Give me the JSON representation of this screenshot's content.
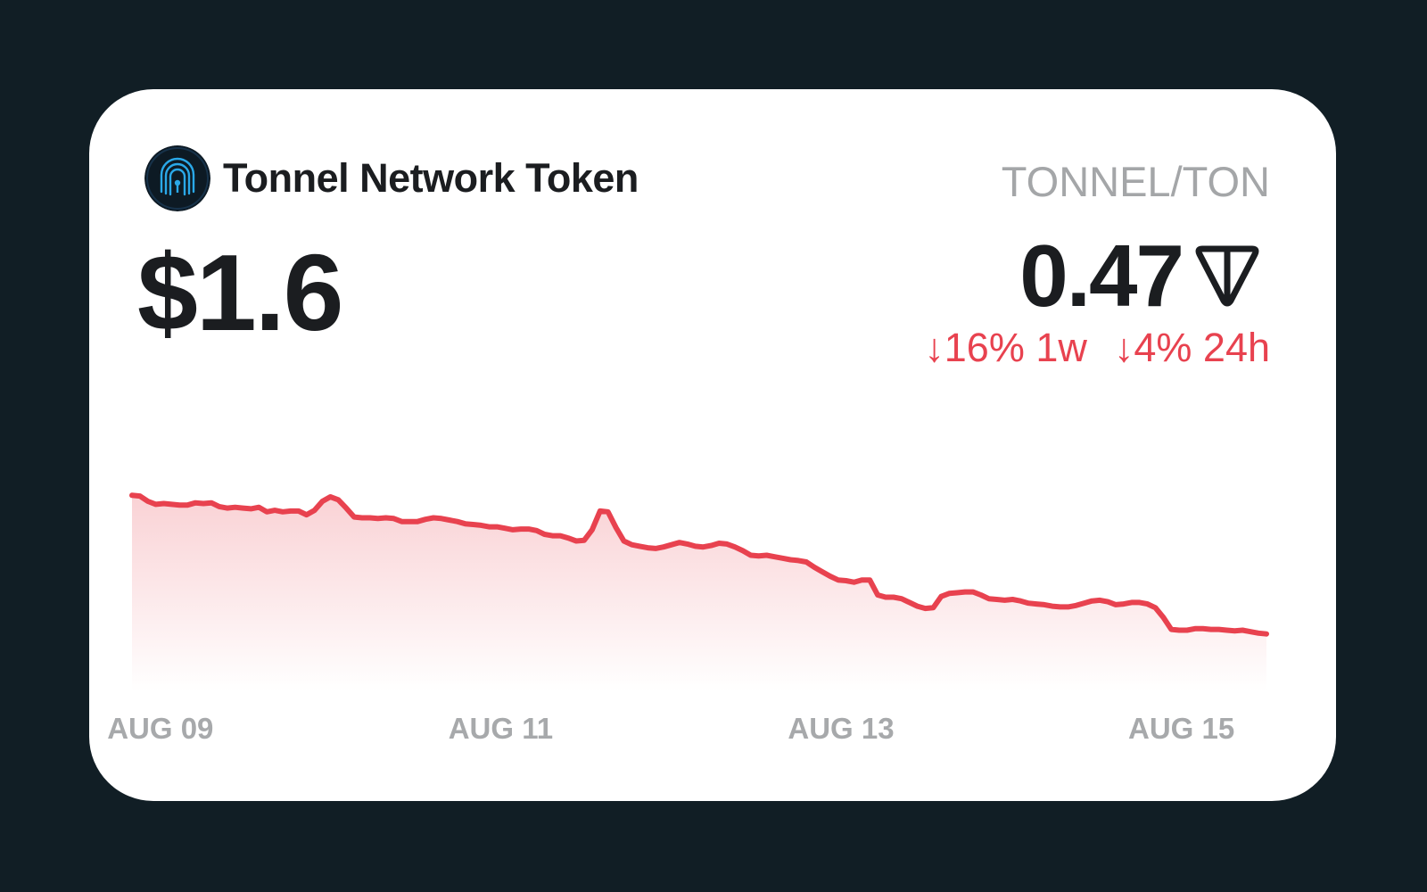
{
  "token": {
    "name": "Tonnel Network Token",
    "pair": "TONNEL/TON",
    "usd_price": "$1.6",
    "ton_price": "0.47",
    "logo_icon": "fingerprint-lock-logo",
    "currency_icon": "ton-icon"
  },
  "changes": [
    {
      "text": "↓16% 1w"
    },
    {
      "text": "↓4% 24h"
    }
  ],
  "colors": {
    "background": "#111e25",
    "card": "#ffffff",
    "line": "#e8424f",
    "negative": "#e8424f",
    "muted": "#a4a6a8"
  },
  "chart_data": {
    "type": "area",
    "title": "",
    "xlabel": "",
    "ylabel": "",
    "grid": false,
    "x_tick_labels": [
      "AUG 09",
      "AUG 11",
      "AUG 13",
      "AUG 15"
    ],
    "x_start": "2024-08-08T20:00",
    "x_end": "2024-08-15T12:00",
    "ylim": [
      0.4,
      0.7
    ],
    "series": [
      {
        "values": [
          0.658,
          0.657,
          0.65,
          0.646,
          0.647,
          0.646,
          0.645,
          0.645,
          0.648,
          0.647,
          0.648,
          0.643,
          0.641,
          0.642,
          0.641,
          0.64,
          0.642,
          0.636,
          0.638,
          0.636,
          0.637,
          0.637,
          0.632,
          0.638,
          0.65,
          0.656,
          0.652,
          0.641,
          0.629,
          0.628,
          0.628,
          0.627,
          0.628,
          0.627,
          0.623,
          0.623,
          0.623,
          0.626,
          0.628,
          0.627,
          0.625,
          0.623,
          0.62,
          0.619,
          0.618,
          0.616,
          0.616,
          0.614,
          0.612,
          0.613,
          0.613,
          0.611,
          0.606,
          0.604,
          0.604,
          0.601,
          0.597,
          0.598,
          0.612,
          0.637,
          0.636,
          0.615,
          0.597,
          0.592,
          0.59,
          0.588,
          0.587,
          0.589,
          0.592,
          0.595,
          0.593,
          0.59,
          0.589,
          0.591,
          0.594,
          0.593,
          0.589,
          0.584,
          0.578,
          0.577,
          0.578,
          0.576,
          0.574,
          0.572,
          0.571,
          0.569,
          0.562,
          0.556,
          0.55,
          0.545,
          0.544,
          0.542,
          0.545,
          0.545,
          0.525,
          0.522,
          0.522,
          0.52,
          0.515,
          0.51,
          0.507,
          0.508,
          0.523,
          0.527,
          0.528,
          0.529,
          0.529,
          0.525,
          0.52,
          0.519,
          0.518,
          0.519,
          0.517,
          0.514,
          0.513,
          0.512,
          0.51,
          0.509,
          0.509,
          0.511,
          0.514,
          0.517,
          0.518,
          0.516,
          0.512,
          0.513,
          0.515,
          0.515,
          0.513,
          0.508,
          0.495,
          0.479,
          0.478,
          0.478,
          0.48,
          0.48,
          0.479,
          0.479,
          0.478,
          0.477,
          0.478,
          0.476,
          0.474,
          0.473
        ]
      }
    ]
  }
}
